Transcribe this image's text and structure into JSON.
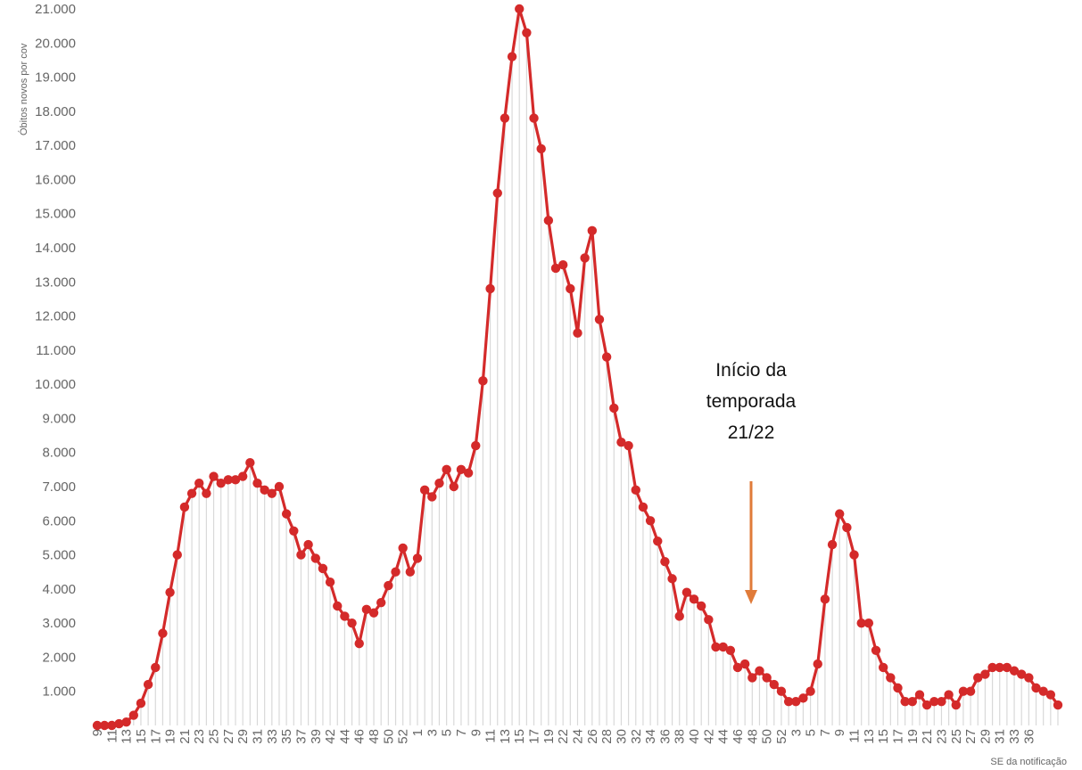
{
  "chart_data": {
    "type": "line",
    "ylabel": "Óbitos novos por cov",
    "xlabel": "SE da notificação",
    "ylim": [
      0,
      21000
    ],
    "y_ticks": [
      1000,
      2000,
      3000,
      4000,
      5000,
      6000,
      7000,
      8000,
      9000,
      10000,
      11000,
      12000,
      13000,
      14000,
      15000,
      16000,
      17000,
      18000,
      19000,
      20000,
      21000
    ],
    "y_tick_labels": [
      "1.000",
      "2.000",
      "3.000",
      "4.000",
      "5.000",
      "6.000",
      "7.000",
      "8.000",
      "9.000",
      "10.000",
      "11.000",
      "12.000",
      "13.000",
      "14.000",
      "15.000",
      "16.000",
      "17.000",
      "18.000",
      "19.000",
      "20.000",
      "21.000"
    ],
    "x_tick_labels": [
      "9",
      "11",
      "13",
      "15",
      "17",
      "19",
      "21",
      "23",
      "25",
      "27",
      "29",
      "31",
      "33",
      "35",
      "37",
      "39",
      "42",
      "44",
      "46",
      "48",
      "50",
      "52",
      "1",
      "3",
      "5",
      "7",
      "9",
      "11",
      "13",
      "15",
      "17",
      "19",
      "22",
      "24",
      "26",
      "28",
      "30",
      "32",
      "34",
      "36",
      "38",
      "40",
      "42",
      "44",
      "46",
      "48",
      "50",
      "52",
      "3",
      "5",
      "7",
      "9",
      "11",
      "13",
      "15",
      "17",
      "19",
      "21",
      "23",
      "25",
      "27",
      "29",
      "31",
      "33",
      "36"
    ],
    "line_color": "#d42a2a",
    "grid": "vertical light gray lines under each point",
    "series": [
      {
        "values": [
          0,
          0,
          0,
          50,
          100,
          300,
          650,
          1200,
          1700,
          2700,
          3900,
          5000,
          6400,
          6800,
          7100,
          6800,
          7300,
          7100,
          7200,
          7200,
          7300,
          7700,
          7100,
          6900,
          6800,
          7000,
          6200,
          5700,
          5000,
          5300,
          4900,
          4600,
          4200,
          3500,
          3200,
          3000,
          2400,
          3400,
          3300,
          3600,
          4100,
          4500,
          5200,
          4500,
          4900,
          6900,
          6700,
          7100,
          7500,
          7000,
          7500,
          7400,
          8200,
          10100,
          12800,
          15600,
          17800,
          19600,
          21000,
          20300,
          17800,
          16900,
          14800,
          13400,
          13500,
          12800,
          11500,
          13700,
          14500,
          11900,
          10800,
          9300,
          8300,
          8200,
          6900,
          6400,
          6000,
          5400,
          4800,
          4300,
          3200,
          3900,
          3700,
          3500,
          3100,
          2300,
          2300,
          2200,
          1700,
          1800,
          1400,
          1600,
          1400,
          1200,
          1000,
          700,
          700,
          800,
          1000,
          1800,
          3700,
          5300,
          6200,
          5800,
          5000,
          3000,
          3000,
          2200,
          1700,
          1400,
          1100,
          700,
          700,
          900,
          600,
          700,
          700,
          900,
          600,
          1000,
          1000,
          1400,
          1500,
          1700,
          1700,
          1700,
          1600,
          1500,
          1400,
          1100,
          1000,
          900,
          600
        ]
      }
    ],
    "annotation": {
      "lines": [
        "Início da",
        "temporada",
        "21/22"
      ],
      "arrow_color": "#e07b39",
      "at_point_index": 92
    }
  }
}
